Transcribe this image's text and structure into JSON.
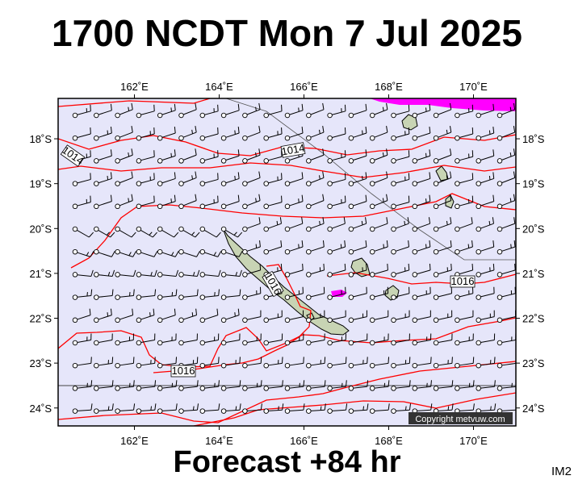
{
  "title": "1700 NCDT Mon 7 Jul 2025",
  "subtitle": "Forecast +84 hr",
  "image_id": "IM2",
  "copyright": "Copyright metvuw.com",
  "colors": {
    "ocean": "#e6e6fa",
    "isobar": "#ff0000",
    "land": "#c8d4b4",
    "precip": "#ff00ff",
    "wind": "#000000"
  },
  "map": {
    "lon_range": [
      160.2,
      171.0
    ],
    "lat_range": [
      -24.4,
      -17.1
    ],
    "lon_ticks": [
      "162˚E",
      "164˚E",
      "166˚E",
      "168˚E",
      "170˚E"
    ],
    "lat_ticks": [
      "18˚S",
      "19˚S",
      "20˚S",
      "21˚S",
      "22˚S",
      "23˚S",
      "24˚S"
    ]
  },
  "isobar_labels": [
    "1014",
    "1014",
    "1016",
    "1016",
    "1016"
  ]
}
